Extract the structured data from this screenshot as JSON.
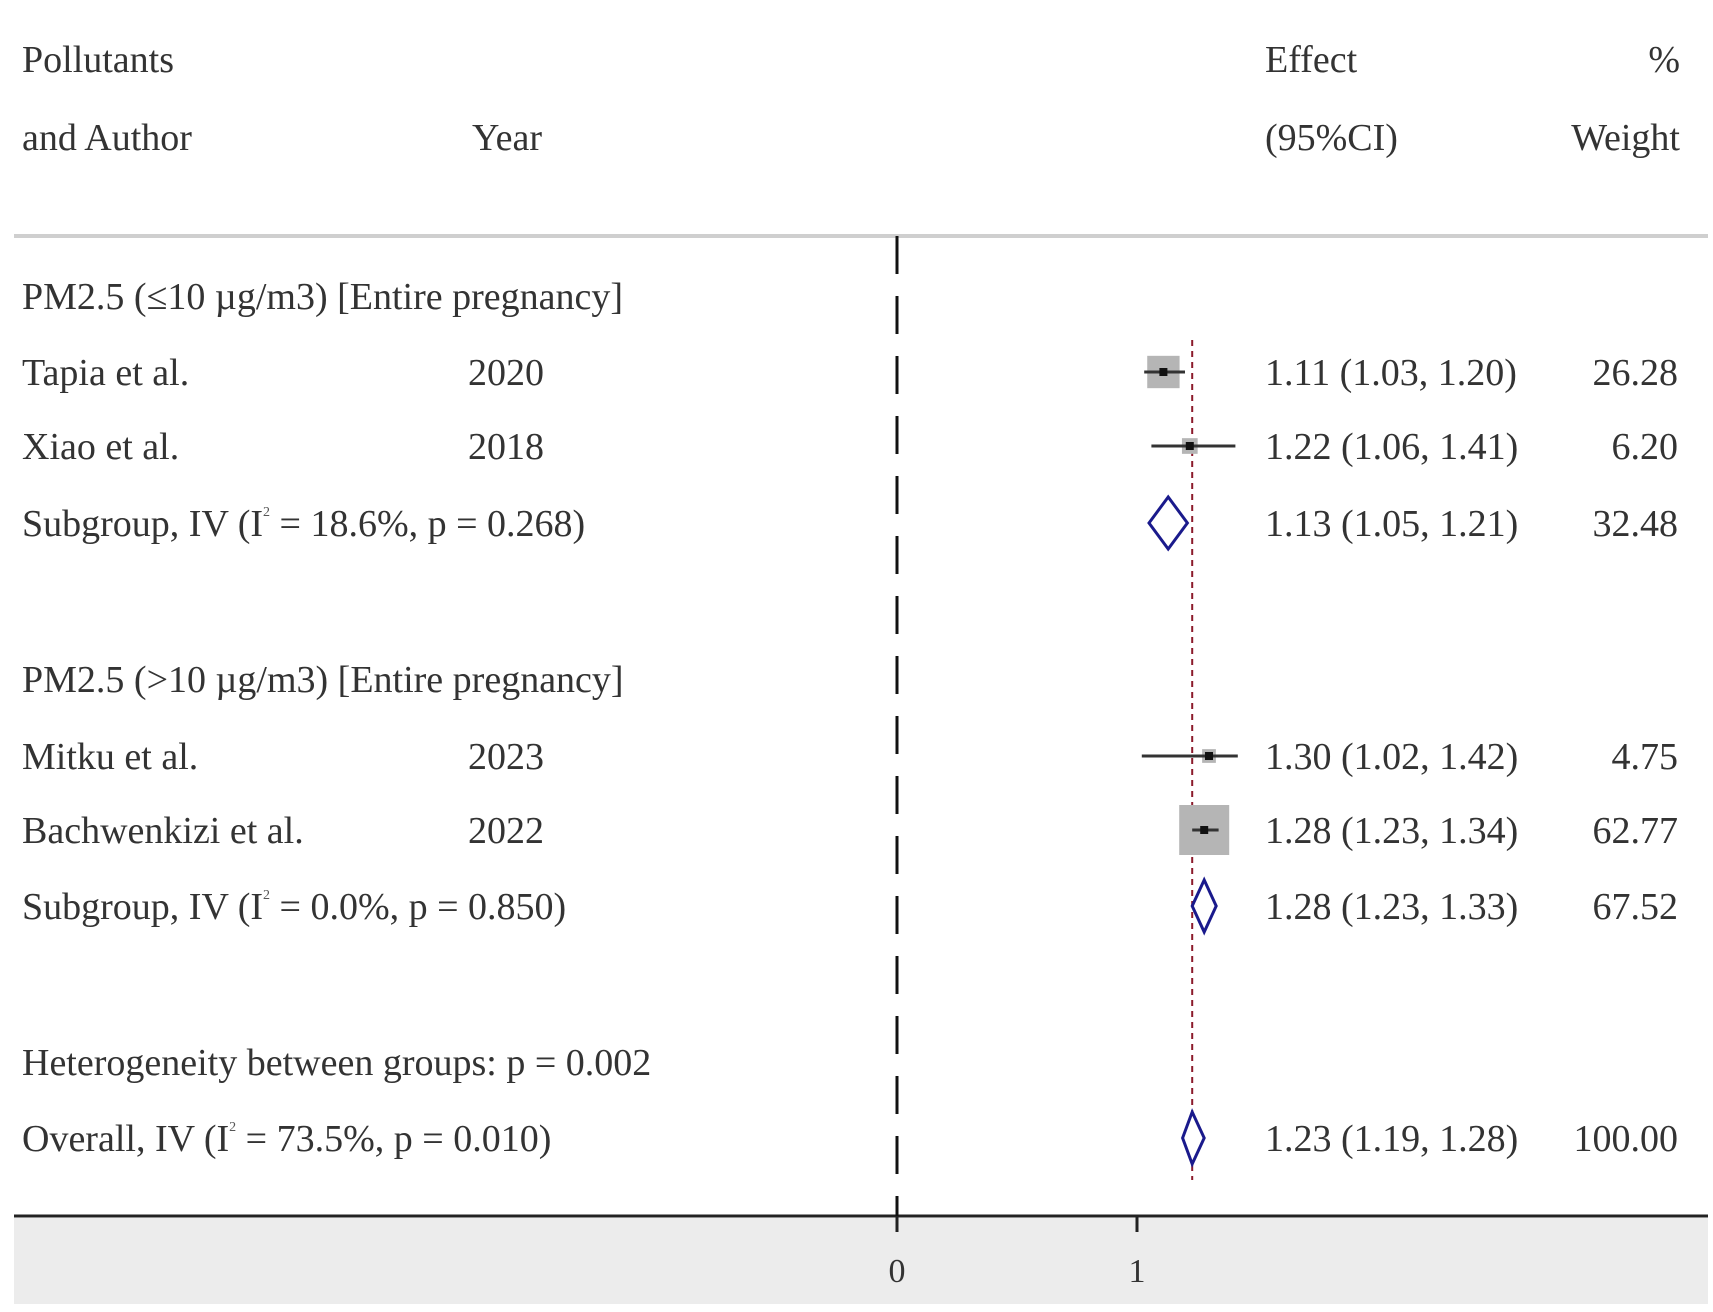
{
  "chart_data": {
    "type": "forest",
    "header": {
      "col1_line1": "Pollutants",
      "col1_line2": "and Author",
      "col2": "Year",
      "col3_line1": "Effect",
      "col3_line2": "(95%CI)",
      "col4_line1": "%",
      "col4_line2": "Weight"
    },
    "rows": [
      {
        "kind": "group",
        "label": "PM2.5 (≤10 µg/m3) [Entire pregnancy]"
      },
      {
        "kind": "study",
        "label": "Tapia et al.",
        "year": "2020",
        "est": 1.11,
        "lo": 1.03,
        "hi": 1.2,
        "ci_text": "1.11 (1.03, 1.20)",
        "weight": "26.28"
      },
      {
        "kind": "study",
        "label": "Xiao et al.",
        "year": "2018",
        "est": 1.22,
        "lo": 1.06,
        "hi": 1.41,
        "ci_text": "1.22 (1.06, 1.41)",
        "weight": "6.20"
      },
      {
        "kind": "subtotal",
        "label_pre": "Subgroup, IV (I",
        "label_sup": "2",
        "label_post": " = 18.6%, p = 0.268)",
        "est": 1.13,
        "lo": 1.05,
        "hi": 1.21,
        "ci_text": "1.13 (1.05, 1.21)",
        "weight": "32.48"
      },
      {
        "kind": "spacer"
      },
      {
        "kind": "group",
        "label": "PM2.5 (>10 µg/m3) [Entire pregnancy]"
      },
      {
        "kind": "study",
        "label": "Mitku  et al.",
        "year": "2023",
        "est": 1.3,
        "lo": 1.02,
        "hi": 1.42,
        "ci_text": "1.30 (1.02, 1.42)",
        "weight": "4.75"
      },
      {
        "kind": "study",
        "label": "Bachwenkizi et al.",
        "year": "2022",
        "est": 1.28,
        "lo": 1.23,
        "hi": 1.34,
        "ci_text": "1.28 (1.23, 1.34)",
        "weight": "62.77"
      },
      {
        "kind": "subtotal",
        "label_pre": "Subgroup, IV (I",
        "label_sup": "2",
        "label_post": " = 0.0%, p = 0.850)",
        "est": 1.28,
        "lo": 1.23,
        "hi": 1.33,
        "ci_text": "1.28 (1.23, 1.33)",
        "weight": "67.52"
      },
      {
        "kind": "spacer"
      },
      {
        "kind": "text",
        "label": "Heterogeneity between groups: p = 0.002"
      },
      {
        "kind": "overall",
        "label_pre": "Overall, IV (I",
        "label_sup": "2",
        "label_post": " = 73.5%, p = 0.010)",
        "est": 1.23,
        "lo": 1.19,
        "hi": 1.28,
        "ci_text": "1.23 (1.19, 1.28)",
        "weight": "100.00"
      }
    ],
    "null_line": 0,
    "overall_line": 1.23,
    "xlim": [
      0,
      1.5
    ],
    "xticks": [
      "0",
      "1"
    ],
    "colors": {
      "diamond": "#1a1a8c",
      "overall_line": "#8b1a2b",
      "weight_box": "#b5b5b5",
      "axis_band": "#ececec"
    }
  }
}
